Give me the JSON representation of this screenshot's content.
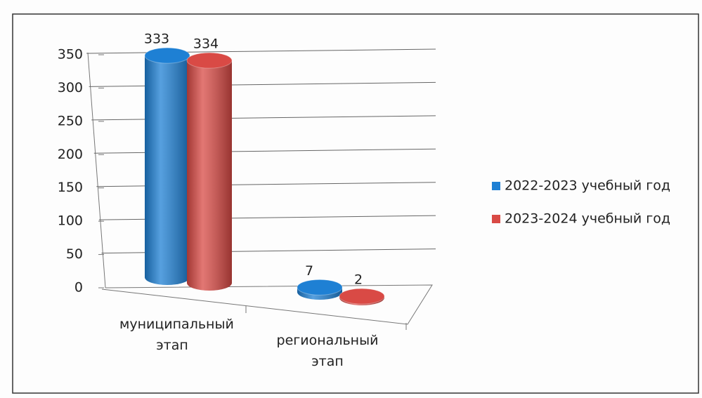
{
  "chart_data": {
    "type": "bar3d",
    "categories": [
      "муниципальный этап",
      "региональный этап"
    ],
    "series": [
      {
        "name": "2022-2023 учебный год",
        "color": "#1e80d4",
        "values": [
          333,
          7
        ]
      },
      {
        "name": "2023-2024 учебный год",
        "color": "#d94a45",
        "values": [
          334,
          2
        ]
      }
    ],
    "ylim": [
      0,
      350
    ],
    "yticks": [
      0,
      50,
      100,
      150,
      200,
      250,
      300,
      350
    ],
    "grid": true,
    "legend": "right"
  }
}
